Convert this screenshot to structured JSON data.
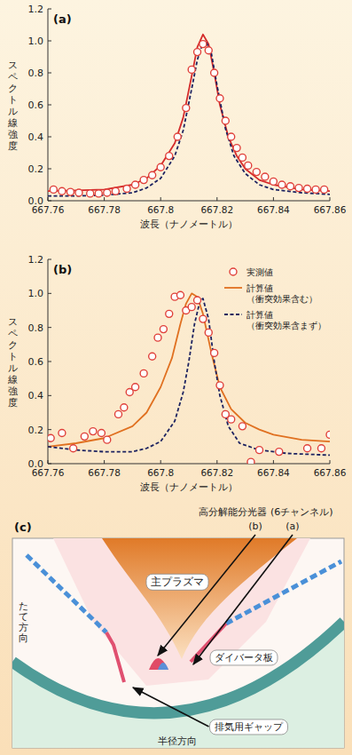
{
  "chart_data": [
    {
      "type": "line",
      "title": "(a)",
      "x_label": "波長（ナノメートル）",
      "y_label": "スペクトル線強度",
      "xlim": [
        667.76,
        667.86
      ],
      "ylim": [
        0,
        1.2
      ],
      "xticks": [
        667.76,
        667.78,
        667.8,
        667.82,
        667.84,
        667.86
      ],
      "yticks": [
        {
          "value": 0,
          "label": "0.0"
        },
        0.2,
        0.4,
        0.6,
        0.8,
        {
          "value": 1,
          "label": "1.0"
        },
        1.2
      ],
      "series": [
        {
          "type": "scatter",
          "marker": "circle",
          "color": "#e0403a",
          "x": [
            667.762,
            667.765,
            667.768,
            667.771,
            667.775,
            667.778,
            667.781,
            667.784,
            667.788,
            667.791,
            667.794,
            667.797,
            667.8,
            667.803,
            667.806,
            667.809,
            667.811,
            667.813,
            667.815,
            667.817,
            667.819,
            667.821,
            667.823,
            667.825,
            667.827,
            667.829,
            667.831,
            667.834,
            667.837,
            667.84,
            667.843,
            667.846,
            667.849,
            667.852,
            667.855,
            667.858
          ],
          "values": [
            0.07,
            0.06,
            0.055,
            0.05,
            0.045,
            0.045,
            0.05,
            0.06,
            0.075,
            0.1,
            0.13,
            0.16,
            0.21,
            0.28,
            0.4,
            0.58,
            0.82,
            0.93,
            0.98,
            0.94,
            0.8,
            0.64,
            0.5,
            0.4,
            0.33,
            0.27,
            0.22,
            0.18,
            0.15,
            0.12,
            0.1,
            0.09,
            0.08,
            0.075,
            0.07,
            0.07
          ]
        },
        {
          "type": "line",
          "line_style": "solid",
          "color": "#d42a2a",
          "x": [
            667.76,
            667.77,
            667.78,
            667.79,
            667.795,
            667.8,
            667.805,
            667.808,
            667.811,
            667.813,
            667.815,
            667.817,
            667.819,
            667.821,
            667.824,
            667.827,
            667.83,
            667.835,
            667.84,
            667.85,
            667.86
          ],
          "values": [
            0.06,
            0.065,
            0.07,
            0.1,
            0.14,
            0.22,
            0.36,
            0.52,
            0.78,
            0.96,
            1.04,
            0.98,
            0.8,
            0.6,
            0.4,
            0.28,
            0.2,
            0.13,
            0.1,
            0.07,
            0.06
          ]
        },
        {
          "type": "line",
          "line_style": "dashed",
          "color": "#1c2260",
          "x": [
            667.76,
            667.77,
            667.78,
            667.79,
            667.795,
            667.8,
            667.805,
            667.808,
            667.811,
            667.813,
            667.815,
            667.816,
            667.818,
            667.82,
            667.823,
            667.826,
            667.83,
            667.835,
            667.84,
            667.85,
            667.86
          ],
          "values": [
            0.03,
            0.03,
            0.035,
            0.05,
            0.08,
            0.14,
            0.28,
            0.44,
            0.7,
            0.88,
            0.99,
            1.0,
            0.92,
            0.72,
            0.45,
            0.28,
            0.17,
            0.1,
            0.07,
            0.05,
            0.04
          ]
        }
      ]
    },
    {
      "type": "line",
      "title": "(b)",
      "x_label": "波長（ナノメートル）",
      "y_label": "スペクトル線強度",
      "xlim": [
        667.76,
        667.86
      ],
      "ylim": [
        0,
        1.2
      ],
      "xticks": [
        667.76,
        667.78,
        667.8,
        667.82,
        667.84,
        667.86
      ],
      "yticks": [
        {
          "value": 0,
          "label": "0.0"
        },
        0.2,
        0.4,
        0.6,
        0.8,
        {
          "value": 1,
          "label": "1.0"
        },
        1.2
      ],
      "legend": "upper right",
      "series": [
        {
          "name": "実測値",
          "type": "scatter",
          "marker": "circle",
          "color": "#e0403a",
          "x": [
            667.761,
            667.765,
            667.769,
            667.773,
            667.776,
            667.779,
            667.781,
            667.785,
            667.787,
            667.789,
            667.791,
            667.794,
            667.797,
            667.799,
            667.801,
            667.803,
            667.805,
            667.807,
            667.809,
            667.811,
            667.813,
            667.815,
            667.817,
            667.819,
            667.821,
            667.823,
            667.825,
            667.829,
            667.832,
            667.835,
            667.842,
            667.852,
            667.857,
            667.86
          ],
          "values": [
            0.15,
            0.18,
            0.09,
            0.16,
            0.19,
            0.18,
            0.14,
            0.29,
            0.33,
            0.42,
            0.45,
            0.53,
            0.63,
            0.74,
            0.79,
            0.88,
            0.98,
            0.99,
            0.9,
            0.92,
            0.96,
            0.85,
            0.77,
            0.65,
            0.46,
            0.29,
            0.26,
            0.22,
            0.01,
            0.08,
            0.07,
            0.09,
            0.09,
            0.17
          ]
        },
        {
          "name": "計算値（衝突効果含む）",
          "type": "line",
          "line_style": "solid",
          "color": "#e07020",
          "x": [
            667.76,
            667.77,
            667.78,
            667.79,
            667.795,
            667.8,
            667.804,
            667.807,
            667.809,
            667.811,
            667.813,
            667.815,
            667.818,
            667.821,
            667.825,
            667.83,
            667.835,
            667.84,
            667.85,
            667.86
          ],
          "values": [
            0.1,
            0.12,
            0.15,
            0.22,
            0.3,
            0.45,
            0.62,
            0.82,
            0.94,
            1.0,
            0.98,
            0.88,
            0.65,
            0.45,
            0.32,
            0.24,
            0.2,
            0.17,
            0.14,
            0.13
          ]
        },
        {
          "name": "計算値（衝突効果含まず）",
          "type": "line",
          "line_style": "dashed",
          "color": "#1c2260",
          "x": [
            667.76,
            667.77,
            667.78,
            667.79,
            667.795,
            667.8,
            667.805,
            667.808,
            667.81,
            667.812,
            667.814,
            667.815,
            667.817,
            667.819,
            667.821,
            667.824,
            667.828,
            667.835,
            667.845,
            667.86
          ],
          "values": [
            0.1,
            0.08,
            0.07,
            0.07,
            0.09,
            0.13,
            0.25,
            0.42,
            0.6,
            0.82,
            0.96,
            0.97,
            0.85,
            0.6,
            0.4,
            0.22,
            0.12,
            0.08,
            0.06,
            0.05
          ]
        }
      ]
    }
  ],
  "diagram": {
    "title": "(c)",
    "instrument": "高分解能分光器 (6チャンネル)",
    "chord_labels": [
      "(b)",
      "(a)"
    ],
    "labels": {
      "plasma": "主プラズマ",
      "divertor": "ダイバータ板",
      "gap": "排気用ギャップ"
    },
    "axes": {
      "y": "たて方向",
      "x": "半径方向"
    }
  }
}
